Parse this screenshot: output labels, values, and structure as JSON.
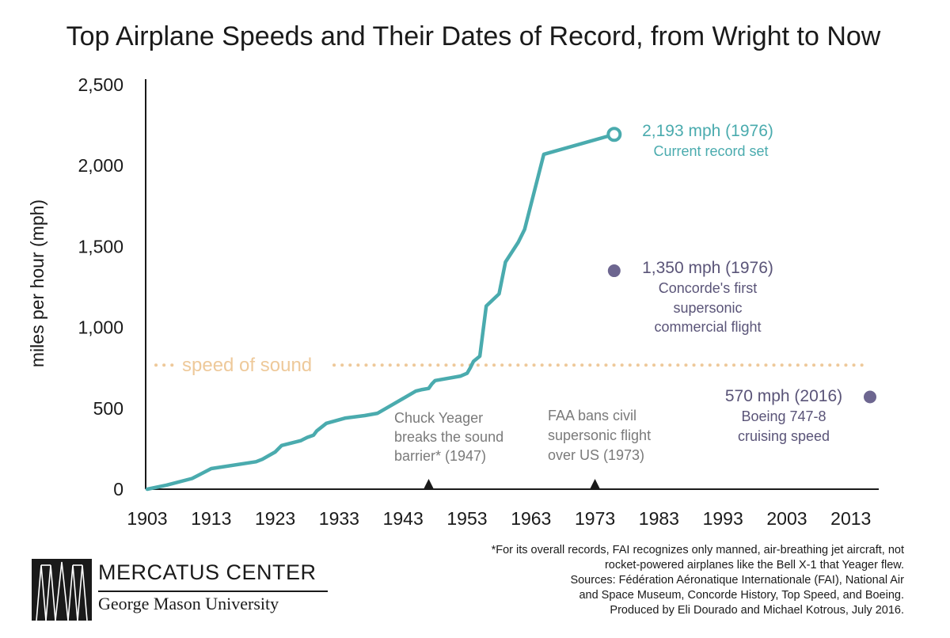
{
  "chart_data": {
    "type": "line",
    "title": "Top Airplane Speeds and Their Dates of Record, from Wright to Now",
    "ylabel": "miles per hour (mph)",
    "xlabel": "",
    "xlim": [
      1903,
      2016
    ],
    "ylim": [
      0,
      2500
    ],
    "x_ticks": [
      1903,
      1913,
      1923,
      1933,
      1943,
      1953,
      1963,
      1973,
      1983,
      1993,
      2003,
      2013
    ],
    "y_ticks": [
      {
        "value": 0,
        "label": "0"
      },
      {
        "value": 500,
        "label": "500"
      },
      {
        "value": 1000,
        "label": "1,000"
      },
      {
        "value": 1500,
        "label": "1,500"
      },
      {
        "value": 2000,
        "label": "2,000"
      },
      {
        "value": 2500,
        "label": "2,500"
      }
    ],
    "series": [
      {
        "color": "#4aabae",
        "points": [
          [
            1903,
            0
          ],
          [
            1906,
            25
          ],
          [
            1910,
            66
          ],
          [
            1913,
            127
          ],
          [
            1920,
            170
          ],
          [
            1921,
            185
          ],
          [
            1923,
            230
          ],
          [
            1924,
            270
          ],
          [
            1927,
            300
          ],
          [
            1928,
            320
          ],
          [
            1929,
            334
          ],
          [
            1929.5,
            360
          ],
          [
            1931,
            407
          ],
          [
            1934,
            440
          ],
          [
            1937,
            455
          ],
          [
            1939,
            469
          ],
          [
            1945,
            606
          ],
          [
            1946,
            616
          ],
          [
            1947,
            623
          ],
          [
            1947.5,
            650
          ],
          [
            1948,
            671
          ],
          [
            1952,
            699
          ],
          [
            1953,
            716
          ],
          [
            1953.5,
            750
          ],
          [
            1954,
            790
          ],
          [
            1955,
            822
          ],
          [
            1956,
            1132
          ],
          [
            1958,
            1207
          ],
          [
            1959,
            1404
          ],
          [
            1961,
            1526
          ],
          [
            1962,
            1606
          ],
          [
            1965,
            2070
          ],
          [
            1976,
            2193
          ]
        ]
      }
    ],
    "reference_line": {
      "label": "speed of sound",
      "value": 767,
      "color": "#eec99a"
    },
    "annotations": {
      "record": {
        "x": 1976,
        "y": 2193,
        "line1": "2,193 mph (1976)",
        "line2": "Current record set",
        "color": "#4aabae"
      },
      "concorde": {
        "x": 1976,
        "y": 1350,
        "line1": "1,350 mph (1976)",
        "line2": "Concorde's first",
        "line3": "supersonic",
        "line4": "commercial flight",
        "color": "#6d6690"
      },
      "boeing": {
        "x": 2016,
        "y": 570,
        "line1": "570 mph (2016)",
        "line2": "Boeing 747-8",
        "line3": "cruising speed",
        "color": "#6d6690"
      },
      "yeager": {
        "x": 1947,
        "line1": "Chuck Yeager",
        "line2": "breaks the sound",
        "line3": "barrier* (1947)"
      },
      "faa": {
        "x": 1973,
        "line1": "FAA bans civil",
        "line2": "supersonic flight",
        "line3": "over US (1973)"
      }
    }
  },
  "footnote": {
    "line1": "*For its overall records, FAI recognizes only manned, air-breathing jet aircraft, not",
    "line2": "rocket-powered airplanes like the Bell X-1 that Yeager flew.",
    "line3": "Sources: Fédération Aéronatique Internationale (FAI), National Air",
    "line4": "and Space Museum, Concorde History, Top Speed, and Boeing.",
    "line5": "Produced by Eli Dourado and Michael Kotrous, July 2016."
  },
  "logo": {
    "name": "MERCATUS CENTER",
    "subtitle": "George Mason University"
  }
}
